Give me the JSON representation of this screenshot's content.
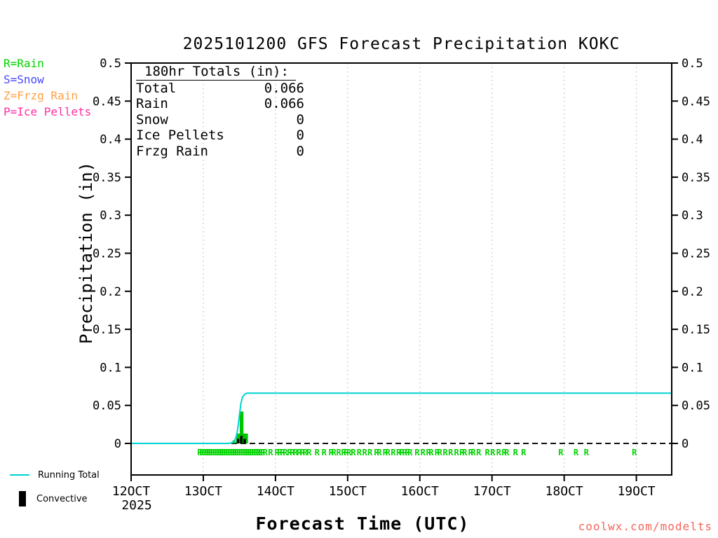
{
  "title": "2025101200 GFS Forecast Precipitation KOKC",
  "watermark": "coolwx.com/modelts",
  "colors": {
    "rain_green": "#00d400",
    "snow_blue": "#4747ff",
    "frzg_orange": "#ffa043",
    "pellets_pink": "#ff2da6",
    "running_total_cyan": "#00d2d2",
    "convective_black": "#000000",
    "watermark_red": "#f2665c"
  },
  "type_legend": {
    "items": [
      {
        "label": "R=Rain",
        "color": "#00d400"
      },
      {
        "label": "S=Snow",
        "color": "#4747ff"
      },
      {
        "label": "Z=Frzg Rain",
        "color": "#ffa043"
      },
      {
        "label": "P=Ice Pellets",
        "color": "#ff2da6"
      }
    ]
  },
  "totals_box": {
    "heading": "180hr Totals (in):",
    "rows": [
      {
        "label": "Total",
        "value": "0.066"
      },
      {
        "label": "Rain",
        "value": "0.066"
      },
      {
        "label": "Snow",
        "value": "0"
      },
      {
        "label": "Ice Pellets",
        "value": "0"
      },
      {
        "label": "Frzg Rain",
        "value": "0"
      }
    ]
  },
  "series_legend": {
    "running_total_label": "Running Total",
    "convective_label": "Convective"
  },
  "chart_data": {
    "type": "line+bar",
    "title": "2025101200 GFS Forecast Precipitation KOKC",
    "xlabel": "Forecast Time (UTC)",
    "ylabel": "Precipitation (in)",
    "ylim": [
      0,
      0.5
    ],
    "ytick_step": 0.05,
    "grid": "dotted vertical lines at each day tick",
    "legend_position": "outside bottom-left",
    "x_ticks": [
      "12OCT",
      "13OCT",
      "14OCT",
      "15OCT",
      "16OCT",
      "17OCT",
      "18OCT",
      "19OCT"
    ],
    "x_year": "2025",
    "x_span_days": 7.49,
    "running_total": {
      "name": "Running Total",
      "color": "#00d2d2",
      "final_value_in": 0.066,
      "points": [
        [
          0.0,
          0
        ],
        [
          0.18,
          0
        ],
        [
          0.187,
          0.001
        ],
        [
          0.191,
          0.003
        ],
        [
          0.194,
          0.008
        ],
        [
          0.197,
          0.018
        ],
        [
          0.2,
          0.035
        ],
        [
          0.203,
          0.052
        ],
        [
          0.206,
          0.061
        ],
        [
          0.21,
          0.0645
        ],
        [
          0.214,
          0.066
        ],
        [
          1.0,
          0.066
        ]
      ]
    },
    "precip_bars": {
      "name": "Precipitation (Rain)",
      "color": "#00c400",
      "bars": [
        {
          "x": 0.1875,
          "w": 0.006,
          "h": 0.004
        },
        {
          "x": 0.1945,
          "w": 0.0215,
          "h": 0.013
        },
        {
          "x": 0.201,
          "w": 0.0068,
          "h": 0.042
        }
      ]
    },
    "convective_bars": {
      "name": "Convective",
      "color": "#000000",
      "bars": [
        {
          "x": 0.1955,
          "w": 0.0045,
          "h": 0.006
        },
        {
          "x": 0.2016,
          "w": 0.0045,
          "h": 0.01
        },
        {
          "x": 0.2077,
          "w": 0.0045,
          "h": 0.006
        }
      ]
    },
    "rain_marks": {
      "char": "R",
      "color": "#00d400",
      "positions": [
        0.127,
        0.131,
        0.135,
        0.139,
        0.143,
        0.147,
        0.151,
        0.155,
        0.159,
        0.163,
        0.167,
        0.171,
        0.175,
        0.179,
        0.183,
        0.187,
        0.191,
        0.195,
        0.199,
        0.203,
        0.207,
        0.211,
        0.215,
        0.219,
        0.223,
        0.227,
        0.231,
        0.235,
        0.239,
        0.243,
        0.248,
        0.258,
        0.27,
        0.275,
        0.28,
        0.285,
        0.293,
        0.298,
        0.304,
        0.311,
        0.317,
        0.322,
        0.329,
        0.344,
        0.357,
        0.37,
        0.375,
        0.384,
        0.393,
        0.398,
        0.403,
        0.411,
        0.422,
        0.432,
        0.442,
        0.454,
        0.459,
        0.47,
        0.475,
        0.485,
        0.495,
        0.501,
        0.506,
        0.511,
        0.516,
        0.529,
        0.54,
        0.55,
        0.555,
        0.566,
        0.571,
        0.581,
        0.591,
        0.602,
        0.612,
        0.617,
        0.628,
        0.633,
        0.643,
        0.659,
        0.669,
        0.68,
        0.69,
        0.695,
        0.711,
        0.726,
        0.795,
        0.823,
        0.842,
        0.931
      ]
    }
  }
}
